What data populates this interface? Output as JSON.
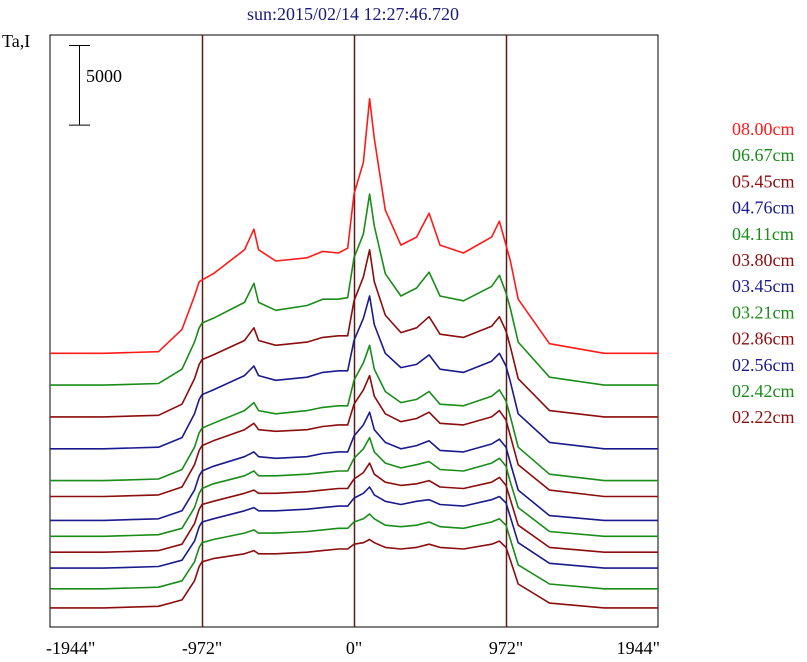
{
  "chart_data": {
    "type": "line",
    "title": "sun:2015/02/14 12:27:46.720",
    "ylabel": "Ta,I",
    "scale_bar_label": "5000",
    "scale_bar_value": 5000,
    "xlim": [
      -1944,
      1944
    ],
    "x_ticks": [
      {
        "value": -1944,
        "label": "-1944\""
      },
      {
        "value": -972,
        "label": "-972\""
      },
      {
        "value": 0,
        "label": "0\""
      },
      {
        "value": 972,
        "label": "972\""
      },
      {
        "value": 1944,
        "label": "1944\""
      }
    ],
    "vertical_lines": [
      -972,
      0,
      972
    ],
    "note": "",
    "colors": {
      "red": "#ff1a1a",
      "green": "#1a8c1a",
      "maroon": "#8b0d0d",
      "blue": "#1a1a8c",
      "axis": "#000000",
      "vline": "#5a1a1a",
      "title": "#1a1a7a"
    },
    "x": [
      -1944,
      -1600,
      -1250,
      -1100,
      -1020,
      -990,
      -972,
      -900,
      -700,
      -640,
      -610,
      -500,
      -300,
      -200,
      -100,
      -40,
      0,
      60,
      100,
      130,
      200,
      300,
      400,
      480,
      550,
      700,
      880,
      930,
      972,
      1000,
      1050,
      1250,
      1600,
      1944
    ],
    "series": [
      {
        "name": "08.00cm",
        "color": "red",
        "offset": 16000,
        "values": [
          0,
          0,
          100,
          1500,
          3600,
          4500,
          4600,
          5000,
          6500,
          7800,
          6500,
          5800,
          6000,
          6400,
          6300,
          6600,
          10000,
          12000,
          16000,
          13500,
          9000,
          6800,
          7300,
          8800,
          6800,
          6300,
          7300,
          8300,
          6800,
          5800,
          3400,
          600,
          0,
          0
        ]
      },
      {
        "name": "06.67cm",
        "color": "green",
        "offset": 14000,
        "values": [
          0,
          0,
          100,
          1000,
          2700,
          3600,
          3900,
          4200,
          5200,
          6400,
          5200,
          4700,
          5000,
          5400,
          5400,
          5500,
          8000,
          9500,
          12000,
          10000,
          7000,
          5600,
          6100,
          7100,
          5600,
          5300,
          6200,
          6900,
          5800,
          4800,
          2700,
          500,
          0,
          0
        ]
      },
      {
        "name": "05.45cm",
        "color": "maroon",
        "offset": 12000,
        "values": [
          0,
          0,
          100,
          800,
          2400,
          3300,
          3600,
          3900,
          4800,
          5600,
          4800,
          4500,
          4700,
          5000,
          5100,
          5100,
          7300,
          8800,
          10500,
          8500,
          6400,
          5300,
          5600,
          6300,
          5200,
          5000,
          5700,
          6300,
          5400,
          4400,
          2400,
          400,
          0,
          0
        ]
      },
      {
        "name": "04.76cm",
        "color": "blue",
        "offset": 10000,
        "values": [
          0,
          0,
          100,
          700,
          2200,
          3100,
          3400,
          3700,
          4600,
          5200,
          4600,
          4300,
          4500,
          4800,
          4900,
          4900,
          6800,
          8200,
          9600,
          7800,
          6000,
          5100,
          5300,
          5900,
          5000,
          4800,
          5500,
          6000,
          5200,
          4200,
          2200,
          400,
          0,
          0
        ]
      },
      {
        "name": "04.11cm",
        "color": "green",
        "offset": 8000,
        "values": [
          0,
          0,
          100,
          700,
          2100,
          3000,
          3300,
          3600,
          4400,
          4900,
          4400,
          4200,
          4400,
          4600,
          4700,
          4700,
          6300,
          7400,
          8500,
          7000,
          5600,
          4900,
          5100,
          5600,
          4800,
          4700,
          5300,
          5700,
          5000,
          4000,
          2100,
          400,
          0,
          0
        ]
      },
      {
        "name": "03.80cm",
        "color": "maroon",
        "offset": 7000,
        "values": [
          0,
          0,
          100,
          600,
          2000,
          2900,
          3200,
          3500,
          4200,
          4600,
          4200,
          4100,
          4200,
          4400,
          4500,
          4500,
          5800,
          6700,
          7600,
          6300,
          5200,
          4700,
          4900,
          5300,
          4600,
          4500,
          5000,
          5400,
          4800,
          3800,
          2000,
          400,
          0,
          0
        ]
      },
      {
        "name": "03.45cm",
        "color": "blue",
        "offset": 5500,
        "values": [
          0,
          0,
          100,
          600,
          1900,
          2800,
          3100,
          3400,
          4000,
          4300,
          4000,
          3900,
          4000,
          4200,
          4300,
          4300,
          5300,
          6000,
          6800,
          5700,
          4900,
          4500,
          4700,
          5000,
          4400,
          4300,
          4800,
          5100,
          4600,
          3600,
          1900,
          300,
          0,
          0
        ]
      },
      {
        "name": "03.21cm",
        "color": "green",
        "offset": 4500,
        "values": [
          0,
          0,
          100,
          500,
          1800,
          2700,
          3000,
          3300,
          3800,
          4100,
          3800,
          3800,
          3900,
          4000,
          4100,
          4100,
          4900,
          5500,
          6200,
          5300,
          4600,
          4300,
          4500,
          4700,
          4200,
          4100,
          4600,
          4900,
          4400,
          3400,
          1800,
          300,
          0,
          0
        ]
      },
      {
        "name": "02.86cm",
        "color": "maroon",
        "offset": 3500,
        "values": [
          0,
          0,
          100,
          500,
          1800,
          2700,
          3000,
          3200,
          3700,
          3900,
          3700,
          3700,
          3800,
          3900,
          4000,
          4000,
          4600,
          5000,
          5600,
          4900,
          4400,
          4200,
          4300,
          4500,
          4100,
          4000,
          4400,
          4700,
          4200,
          3300,
          1700,
          300,
          0,
          0
        ]
      },
      {
        "name": "02.56cm",
        "color": "blue",
        "offset": 2500,
        "values": [
          0,
          0,
          100,
          500,
          1700,
          2600,
          2900,
          3100,
          3600,
          3800,
          3600,
          3600,
          3700,
          3800,
          3900,
          3900,
          4400,
          4700,
          5100,
          4600,
          4200,
          4000,
          4200,
          4300,
          4000,
          3900,
          4300,
          4500,
          4100,
          3200,
          1600,
          300,
          0,
          0
        ]
      },
      {
        "name": "02.42cm",
        "color": "green",
        "offset": 1200,
        "values": [
          0,
          0,
          100,
          500,
          1700,
          2600,
          2900,
          3100,
          3500,
          3700,
          3500,
          3500,
          3600,
          3700,
          3800,
          3800,
          4200,
          4400,
          4700,
          4400,
          4000,
          3900,
          4000,
          4200,
          3900,
          3800,
          4200,
          4400,
          4000,
          3100,
          1500,
          300,
          0,
          0
        ]
      },
      {
        "name": "02.22cm",
        "color": "maroon",
        "offset": 0,
        "values": [
          0,
          0,
          100,
          500,
          1700,
          2600,
          2900,
          3100,
          3400,
          3600,
          3400,
          3400,
          3500,
          3600,
          3700,
          3700,
          4000,
          4100,
          4300,
          4100,
          3800,
          3700,
          3800,
          4000,
          3800,
          3700,
          4000,
          4200,
          3800,
          3000,
          1500,
          300,
          0,
          0
        ]
      }
    ],
    "ylim": [
      -1200,
      36000
    ]
  }
}
